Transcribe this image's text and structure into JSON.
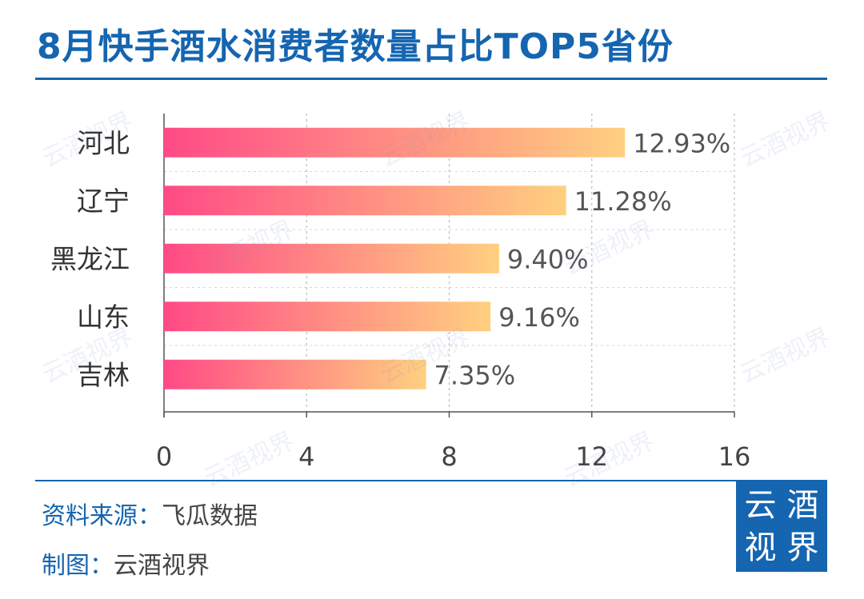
{
  "header": {
    "title": "8月快手酒水消费者数量占比TOP5省份"
  },
  "chart_data": {
    "type": "bar",
    "orientation": "horizontal",
    "categories": [
      "河北",
      "辽宁",
      "黑龙江",
      "山东",
      "吉林"
    ],
    "values": [
      12.93,
      11.28,
      9.4,
      9.16,
      7.35
    ],
    "value_labels": [
      "12.93%",
      "11.28%",
      "9.40%",
      "9.16%",
      "7.35%"
    ],
    "xlim": [
      0,
      16
    ],
    "xticks": [
      0,
      4,
      8,
      12,
      16
    ],
    "xtick_labels": [
      "0",
      "4",
      "8",
      "12",
      "16"
    ],
    "grid": "vertical dashed",
    "bar_gradient": [
      "#ff4a86",
      "#ffd080"
    ]
  },
  "footer": {
    "source_key": "资料来源：",
    "source_value": "飞瓜数据",
    "maker_key": "制图：",
    "maker_value": "云酒视界"
  },
  "logo": {
    "chars": [
      "云",
      "酒",
      "视",
      "界"
    ]
  },
  "watermark": {
    "text": "云酒视界"
  },
  "colors": {
    "brand": "#1565b0"
  }
}
